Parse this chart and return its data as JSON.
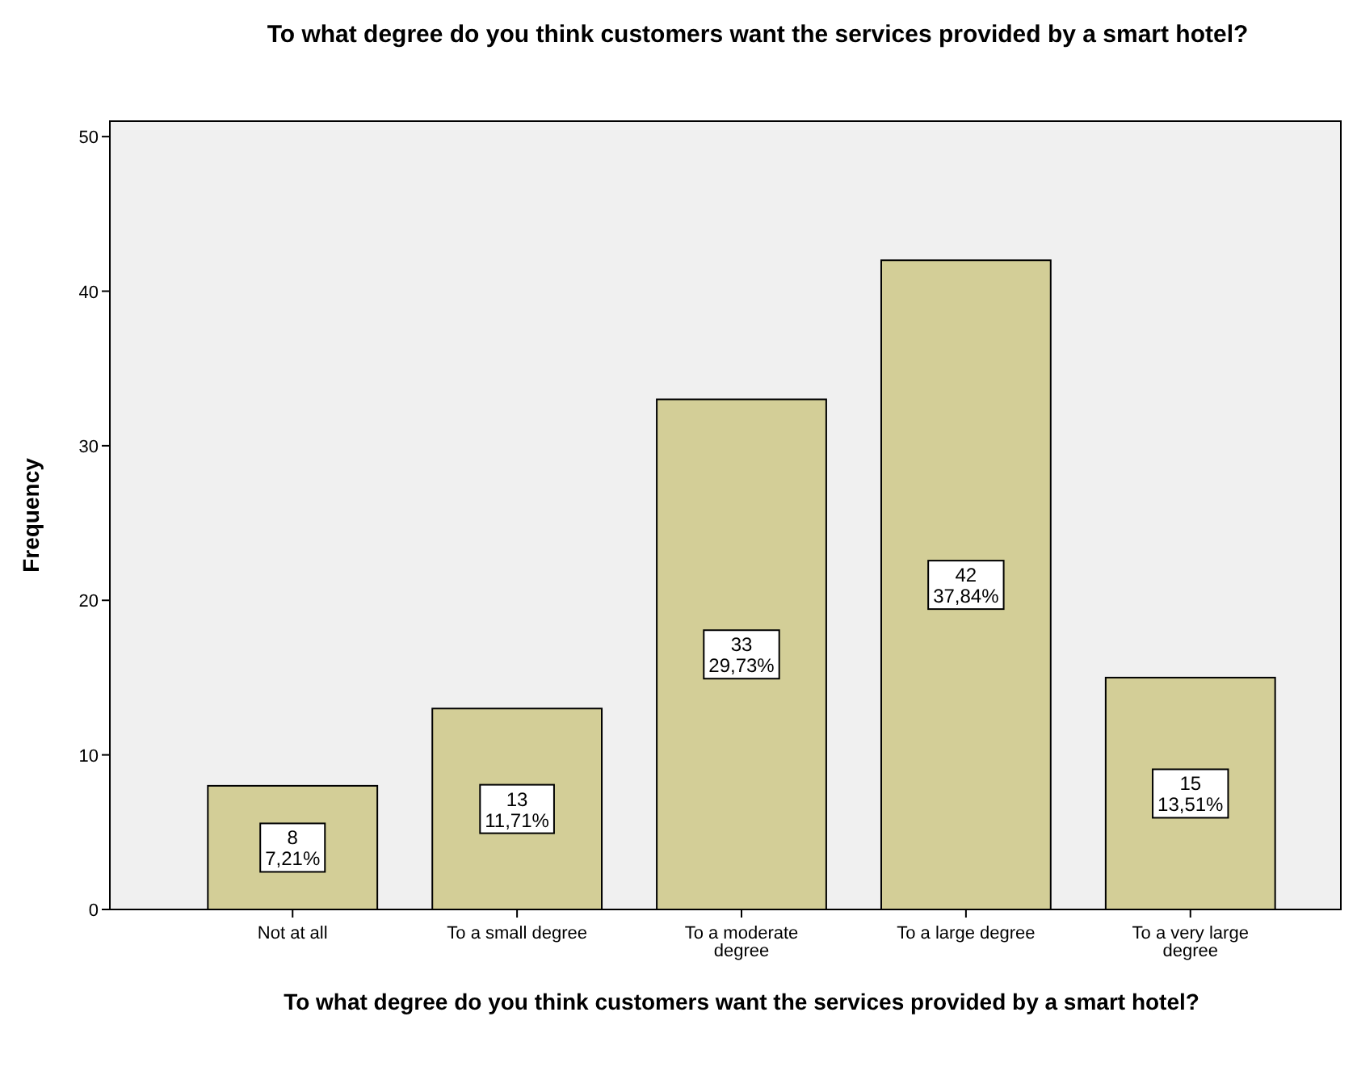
{
  "chart_data": {
    "type": "bar",
    "title": "To what degree do you think customers want the services provided by a smart hotel?",
    "xlabel": "To what degree do you think customers want the services provided by a smart hotel?",
    "ylabel": "Frequency",
    "categories": [
      "Not at all",
      "To a small degree",
      "To a moderate degree",
      "To a large degree",
      "To a very large degree"
    ],
    "values": [
      8,
      13,
      33,
      42,
      15
    ],
    "value_labels": [
      "8\n7,21%",
      "13\n11,71%",
      "33\n29,73%",
      "42\n37,84%",
      "15\n13,51%"
    ],
    "color": "#d3ce97",
    "ylim": [
      0,
      51
    ],
    "yticks": [
      0,
      10,
      20,
      30,
      40,
      50
    ],
    "grid": false
  }
}
